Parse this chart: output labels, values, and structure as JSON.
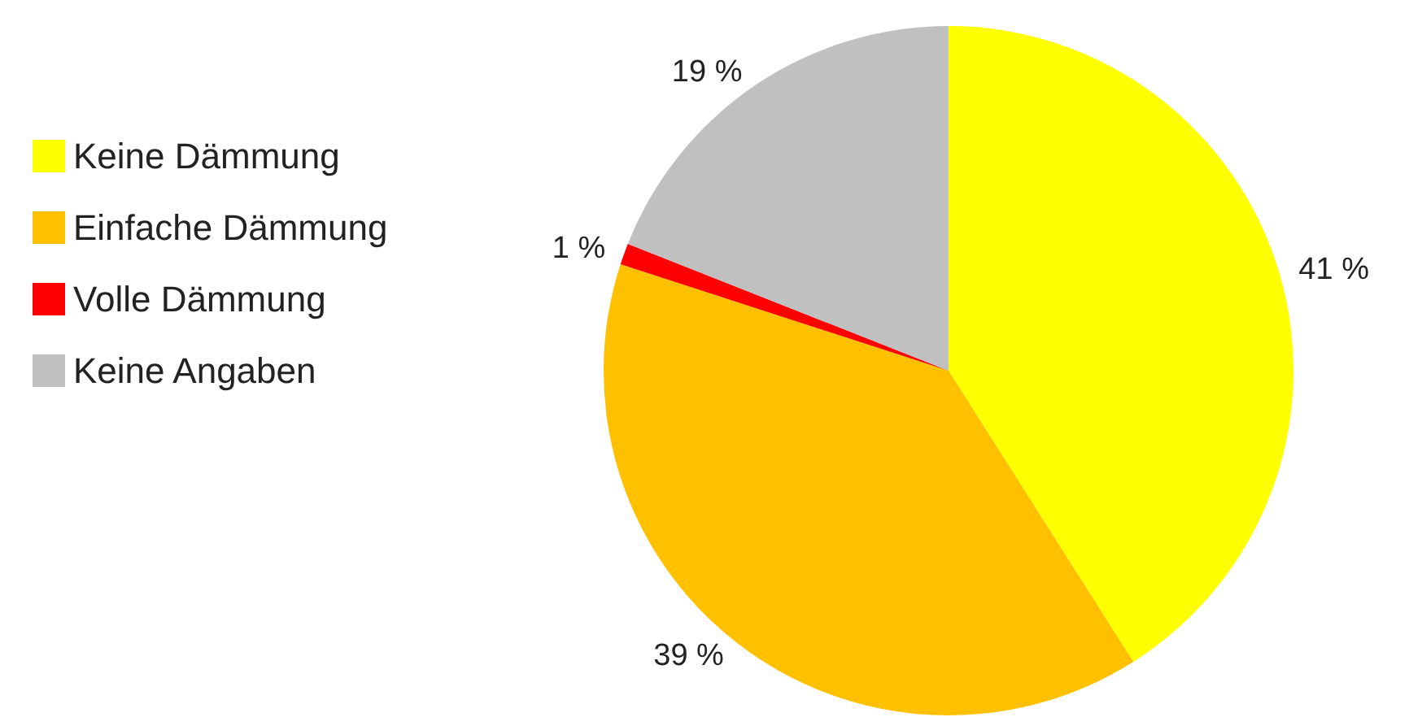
{
  "chart_data": {
    "type": "pie",
    "categories": [
      "Keine Dämmung",
      "Einfache Dämmung",
      "Volle Dämmung",
      "Keine Angaben"
    ],
    "values": [
      41,
      39,
      1,
      19
    ],
    "colors": [
      "#ffff00",
      "#ffc000",
      "#ff0000",
      "#c0c0c0"
    ],
    "value_labels": [
      "41 %",
      "39 %",
      "1 %",
      "19 %"
    ],
    "legend": "left"
  }
}
